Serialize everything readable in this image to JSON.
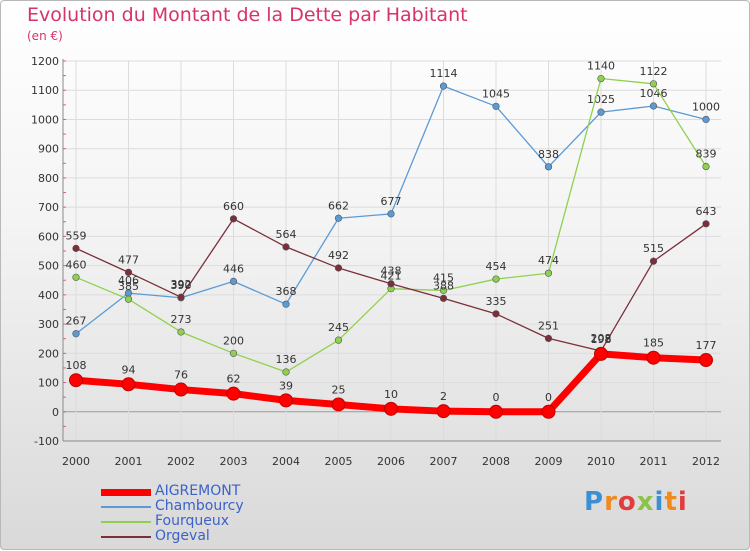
{
  "header": {
    "title": "Evolution du Montant de la Dette par Habitant",
    "unit": "(en €)"
  },
  "logo": {
    "letters": [
      "P",
      "r",
      "o",
      "x",
      "i",
      "t",
      "i"
    ]
  },
  "chart_data": {
    "type": "line",
    "x": [
      "2000",
      "2001",
      "2002",
      "2003",
      "2004",
      "2005",
      "2006",
      "2007",
      "2008",
      "2009",
      "2010",
      "2011",
      "2012"
    ],
    "ylim": [
      -100,
      1200
    ],
    "yticks": [
      -100,
      0,
      100,
      200,
      300,
      400,
      500,
      600,
      700,
      800,
      900,
      1000,
      1100,
      1200
    ],
    "ytick_labels": [
      "-100",
      "0",
      "100",
      "200",
      "300",
      "400",
      "500",
      "600",
      "700",
      "800",
      "900",
      "1000",
      "1100",
      "1200"
    ],
    "grid": true,
    "legend_position": "bottom-left",
    "series": [
      {
        "name": "AIGREMONT",
        "color": "#ff0000",
        "values": [
          108,
          94,
          76,
          62,
          39,
          25,
          10,
          2,
          0,
          0,
          198,
          185,
          177
        ]
      },
      {
        "name": "Chambourcy",
        "color": "#5b9bd5",
        "values": [
          267,
          406,
          390,
          446,
          368,
          662,
          677,
          1114,
          1045,
          838,
          1025,
          1046,
          1000
        ]
      },
      {
        "name": "Fourqueux",
        "color": "#8fd14f",
        "values": [
          460,
          385,
          273,
          200,
          136,
          245,
          421,
          415,
          454,
          474,
          1140,
          1122,
          839
        ]
      },
      {
        "name": "Orgeval",
        "color": "#7a2f3a",
        "values": [
          559,
          477,
          392,
          660,
          564,
          492,
          438,
          388,
          335,
          251,
          208,
          515,
          643
        ]
      }
    ]
  }
}
